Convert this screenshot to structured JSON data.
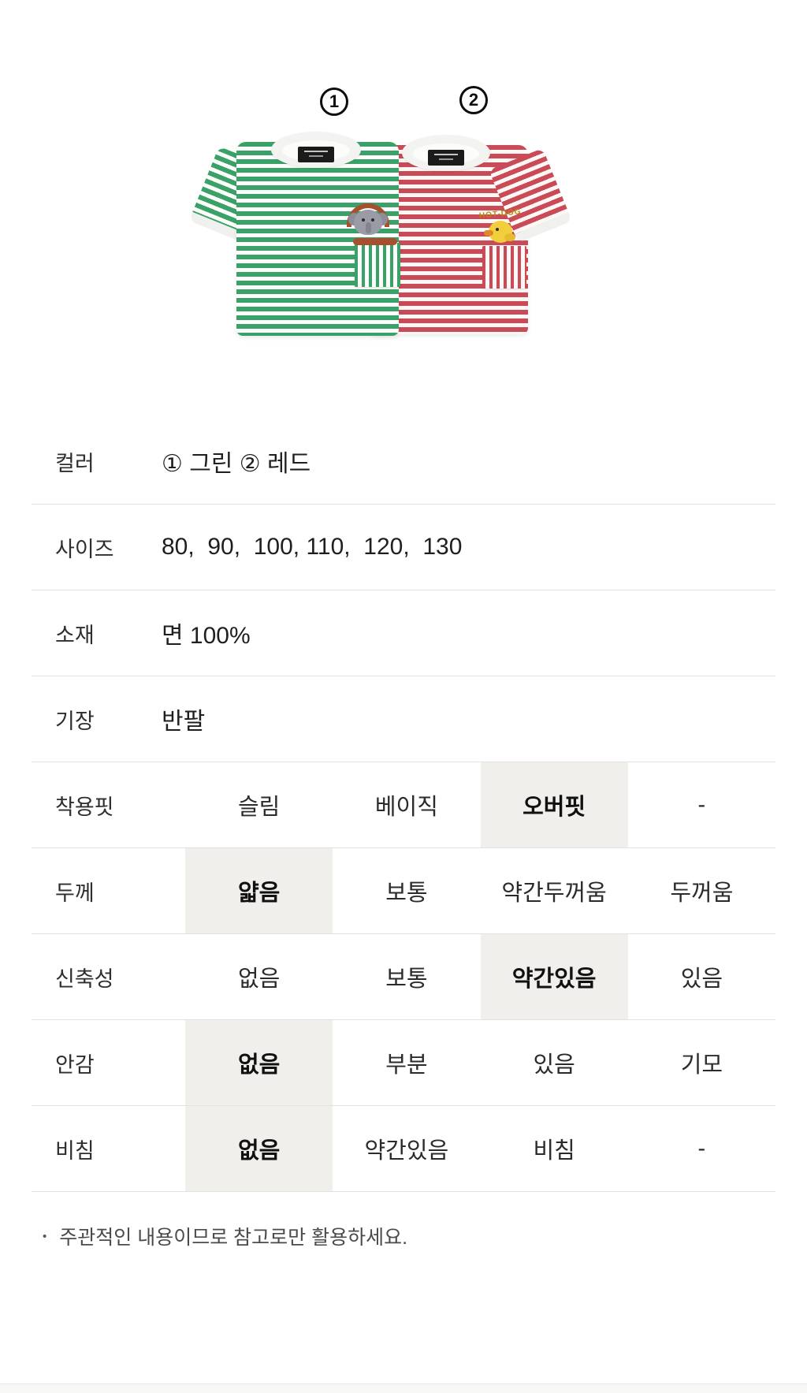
{
  "hero": {
    "badge_1": "1",
    "badge_2": "2",
    "shirt_1_color_name": "그린",
    "shirt_2_color_name": "레드",
    "red_shirt_pocket_text": "HOT-DOG"
  },
  "specs": {
    "rows": [
      {
        "label": "컬러",
        "type": "text",
        "value": "① 그린 ② 레드"
      },
      {
        "label": "사이즈",
        "type": "text",
        "value": "80,  90,  100, 110,  120,  130"
      },
      {
        "label": "소재",
        "type": "text",
        "value": "면 100%"
      },
      {
        "label": "기장",
        "type": "text",
        "value": "반팔"
      },
      {
        "label": "착용핏",
        "type": "options",
        "options": [
          "슬림",
          "베이직",
          "오버핏",
          "-"
        ],
        "selected": 2
      },
      {
        "label": "두께",
        "type": "options",
        "options": [
          "얇음",
          "보통",
          "약간두꺼움",
          "두꺼움"
        ],
        "selected": 0
      },
      {
        "label": "신축성",
        "type": "options",
        "options": [
          "없음",
          "보통",
          "약간있음",
          "있음"
        ],
        "selected": 2
      },
      {
        "label": "안감",
        "type": "options",
        "options": [
          "없음",
          "부분",
          "있음",
          "기모"
        ],
        "selected": 0
      },
      {
        "label": "비침",
        "type": "options",
        "options": [
          "없음",
          "약간있음",
          "비침",
          "-"
        ],
        "selected": 0
      }
    ]
  },
  "note": {
    "bullet": "•",
    "text": "주관적인 내용이므로 참고로만 활용하세요."
  },
  "colors": {
    "green-stripe": "#3aa268",
    "red-stripe": "#c94b57",
    "collar": "#f3f3f1",
    "highlight": "#f1efec",
    "divider": "#e4e2e0",
    "text-dark": "#222222",
    "text-gray": "#4a4a4a"
  }
}
